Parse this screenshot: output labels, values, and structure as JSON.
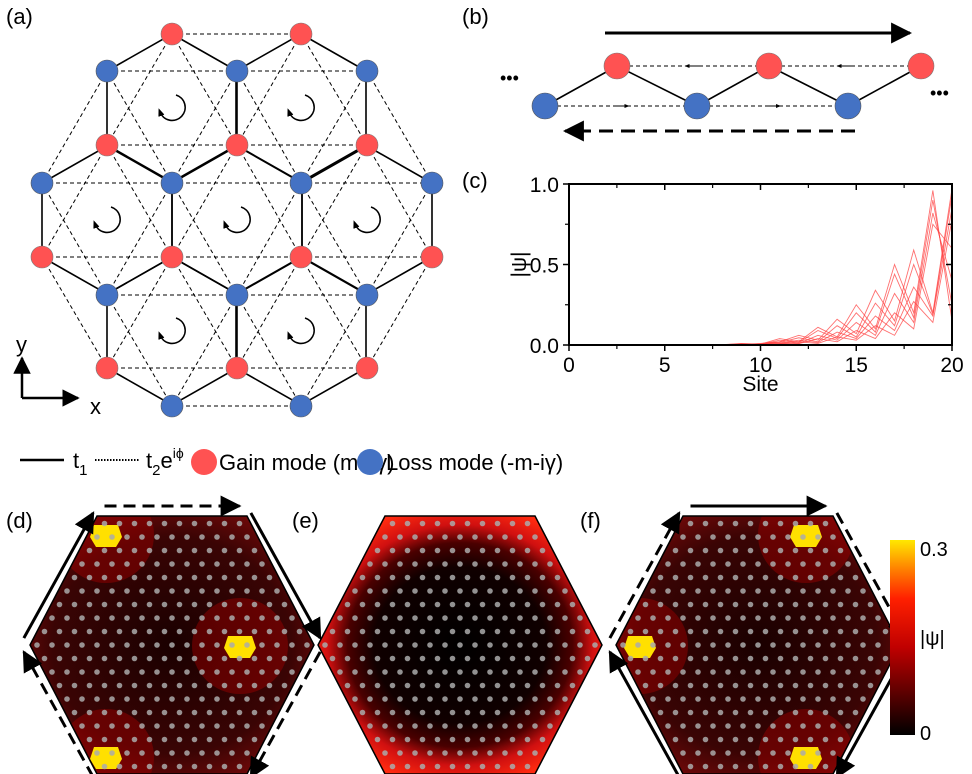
{
  "panels": {
    "a": "(a)",
    "b": "(b)",
    "c": "(c)",
    "d": "(d)",
    "e": "(e)",
    "f": "(f)"
  },
  "axes_a": {
    "y": "y",
    "x": "x"
  },
  "legend": {
    "t1": "t",
    "t1_sub": "1",
    "t2": "t",
    "t2_sub": "2",
    "t2_e": "e",
    "t2_sup": "iϕ",
    "gain": "Gain mode (m+iγ)",
    "loss": "Loss mode (-m-iγ)",
    "dots_left": "•••",
    "dots_right": "•••"
  },
  "colors": {
    "gain": "#ff5252",
    "loss": "#4472c4",
    "curve": "#ff4040",
    "high": "#ffe000",
    "mid": "#ff2000",
    "low": "#000000"
  },
  "colorbar": {
    "max": "0.3",
    "label": "|ψ|",
    "min": "0"
  },
  "chart_data": {
    "type": "line",
    "xlabel": "Site",
    "ylabel": "|ψ|",
    "xlim": [
      0,
      20
    ],
    "ylim": [
      0,
      1
    ],
    "xticks": [
      "0",
      "5",
      "10",
      "15",
      "20"
    ],
    "yticks": [
      "0.0",
      "0.5",
      "1.0"
    ],
    "x": [
      1,
      2,
      3,
      4,
      5,
      6,
      7,
      8,
      9,
      10,
      11,
      12,
      13,
      14,
      15,
      16,
      17,
      18,
      19,
      20
    ],
    "series": [
      {
        "values": [
          0,
          0,
          0,
          0,
          0,
          0,
          0,
          0.002,
          0.01,
          0.005,
          0.04,
          0.02,
          0.11,
          0.05,
          0.25,
          0.1,
          0.5,
          0.2,
          0.96,
          0.15
        ]
      },
      {
        "values": [
          0,
          0,
          0,
          0,
          0,
          0,
          0,
          0,
          0.003,
          0.01,
          0.02,
          0.06,
          0.03,
          0.16,
          0.07,
          0.34,
          0.15,
          0.59,
          0.2,
          0.97
        ]
      },
      {
        "values": [
          0,
          0,
          0,
          0,
          0,
          0,
          0,
          0.001,
          0.008,
          0.004,
          0.03,
          0.015,
          0.09,
          0.04,
          0.2,
          0.08,
          0.44,
          0.17,
          0.9,
          0.25
        ]
      },
      {
        "values": [
          0,
          0,
          0,
          0,
          0,
          0,
          0,
          0,
          0.002,
          0.008,
          0.015,
          0.045,
          0.02,
          0.12,
          0.05,
          0.26,
          0.12,
          0.5,
          0.19,
          0.93
        ]
      },
      {
        "values": [
          0,
          0,
          0,
          0,
          0,
          0,
          0,
          0.001,
          0.005,
          0.003,
          0.02,
          0.01,
          0.06,
          0.03,
          0.14,
          0.06,
          0.32,
          0.14,
          0.82,
          0.4
        ]
      },
      {
        "values": [
          0,
          0,
          0,
          0,
          0,
          0,
          0,
          0,
          0.001,
          0.005,
          0.01,
          0.03,
          0.015,
          0.08,
          0.04,
          0.18,
          0.09,
          0.36,
          0.18,
          0.85
        ]
      },
      {
        "values": [
          0,
          0,
          0,
          0,
          0,
          0,
          0,
          0,
          0.003,
          0.002,
          0.01,
          0.008,
          0.04,
          0.02,
          0.09,
          0.04,
          0.2,
          0.1,
          0.75,
          0.6
        ]
      },
      {
        "values": [
          0,
          0,
          0,
          0,
          0,
          0,
          0,
          0,
          0,
          0.003,
          0.006,
          0.02,
          0.01,
          0.05,
          0.03,
          0.12,
          0.06,
          0.27,
          0.14,
          0.78
        ]
      }
    ]
  }
}
